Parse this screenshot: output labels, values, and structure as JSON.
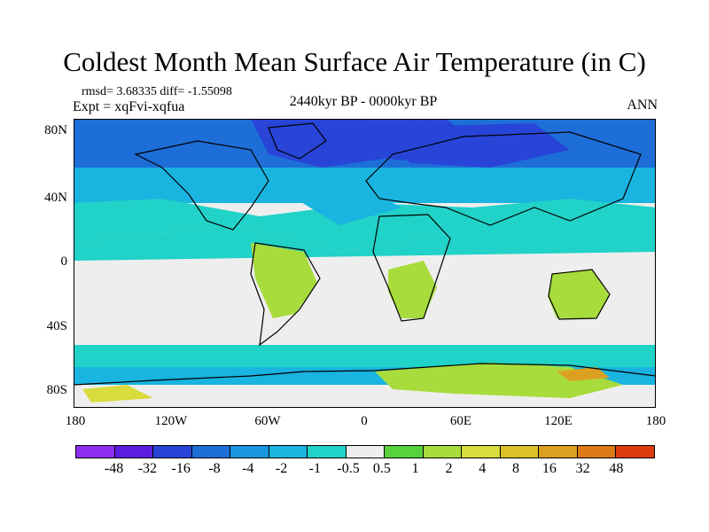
{
  "title": "Coldest Month Mean Surface Air Temperature (in C)",
  "stats": "rmsd= 3.68335 diff= -1.55098",
  "experiment": "Expt = xqFvi-xqfua",
  "period": "2440kyr BP - 0000kyr BP",
  "season": "ANN",
  "lat_labels": [
    "80N",
    "40N",
    "0",
    "40S",
    "80S"
  ],
  "lon_labels": [
    "180",
    "120W",
    "60W",
    "0",
    "60E",
    "120E",
    "180"
  ],
  "colorbar": {
    "colors": [
      "#8c2ff0",
      "#5b1ee0",
      "#2845d8",
      "#1e6ed8",
      "#1a96e0",
      "#1ab4e0",
      "#20d2c8",
      "#eeeeee",
      "#58d23c",
      "#a8dc3c",
      "#d8dc3c",
      "#dcc228",
      "#dca020",
      "#dc7a18",
      "#dc3c10"
    ],
    "labels": [
      "-48",
      "-32",
      "-16",
      "-8",
      "-4",
      "-2",
      "-1",
      "-0.5",
      "0.5",
      "1",
      "2",
      "4",
      "8",
      "16",
      "32",
      "48"
    ]
  },
  "map_colors": {
    "neutral": "#eeeeee",
    "cyan": "#20d2c8",
    "light_blue": "#1ab4e0",
    "mid_blue": "#1e6ed8",
    "dark_blue": "#2845d8",
    "green": "#58d23c",
    "yellow_green": "#a8dc3c",
    "yellow": "#d8dc3c",
    "orange": "#dca020"
  }
}
